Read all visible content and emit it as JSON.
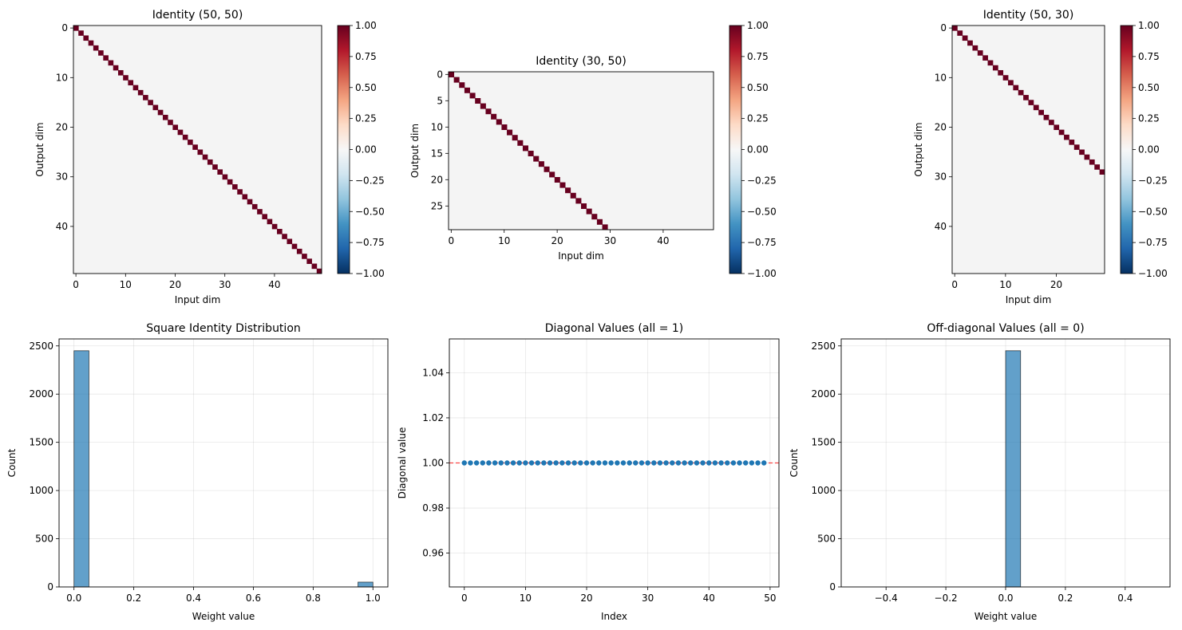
{
  "chart_data": [
    {
      "type": "heatmap",
      "title": "Identity (50, 50)",
      "xlabel": "Input dim",
      "ylabel": "Output dim",
      "rows": 50,
      "cols": 50,
      "matrix": "identity",
      "xticks": [
        0,
        10,
        20,
        30,
        40
      ],
      "yticks": [
        0,
        10,
        20,
        30,
        40
      ],
      "colorbar": {
        "range": [
          -1.0,
          1.0
        ],
        "ticks": [
          "1.00",
          "0.75",
          "0.50",
          "0.25",
          "0.00",
          "−0.25",
          "−0.50",
          "−0.75",
          "−1.00"
        ]
      },
      "colormap": "RdBu_r"
    },
    {
      "type": "heatmap",
      "title": "Identity (30, 50)",
      "xlabel": "Input dim",
      "ylabel": "Output dim",
      "rows": 30,
      "cols": 50,
      "matrix": "identity",
      "xticks": [
        0,
        10,
        20,
        30,
        40
      ],
      "yticks": [
        0,
        5,
        10,
        15,
        20,
        25
      ],
      "colorbar": {
        "range": [
          -1.0,
          1.0
        ],
        "ticks": [
          "1.00",
          "0.75",
          "0.50",
          "0.25",
          "0.00",
          "−0.25",
          "−0.50",
          "−0.75",
          "−1.00"
        ]
      },
      "colormap": "RdBu_r"
    },
    {
      "type": "heatmap",
      "title": "Identity (50, 30)",
      "xlabel": "Input dim",
      "ylabel": "Output dim",
      "rows": 50,
      "cols": 30,
      "matrix": "identity",
      "xticks": [
        0,
        10,
        20
      ],
      "yticks": [
        0,
        10,
        20,
        30,
        40
      ],
      "colorbar": {
        "range": [
          -1.0,
          1.0
        ],
        "ticks": [
          "1.00",
          "0.75",
          "0.50",
          "0.25",
          "0.00",
          "−0.25",
          "−0.50",
          "−0.75",
          "−1.00"
        ]
      },
      "colormap": "RdBu_r"
    },
    {
      "type": "bar",
      "subtype": "histogram",
      "title": "Square Identity Distribution",
      "xlabel": "Weight value",
      "ylabel": "Count",
      "bins": [
        {
          "x0": 0.0,
          "x1": 0.05,
          "count": 2450
        },
        {
          "x0": 0.95,
          "x1": 1.0,
          "count": 50
        }
      ],
      "xlim": [
        -0.05,
        1.05
      ],
      "ylim": [
        0,
        2572.5
      ],
      "xticks": [
        "0.0",
        "0.2",
        "0.4",
        "0.6",
        "0.8",
        "1.0"
      ],
      "yticks": [
        "0",
        "500",
        "1000",
        "1500",
        "2000",
        "2500"
      ],
      "color": "#1f77b4",
      "grid": true
    },
    {
      "type": "scatter",
      "title": "Diagonal Values (all = 1)",
      "xlabel": "Index",
      "ylabel": "Diagonal value",
      "x": [
        0,
        1,
        2,
        3,
        4,
        5,
        6,
        7,
        8,
        9,
        10,
        11,
        12,
        13,
        14,
        15,
        16,
        17,
        18,
        19,
        20,
        21,
        22,
        23,
        24,
        25,
        26,
        27,
        28,
        29,
        30,
        31,
        32,
        33,
        34,
        35,
        36,
        37,
        38,
        39,
        40,
        41,
        42,
        43,
        44,
        45,
        46,
        47,
        48,
        49
      ],
      "y": [
        1,
        1,
        1,
        1,
        1,
        1,
        1,
        1,
        1,
        1,
        1,
        1,
        1,
        1,
        1,
        1,
        1,
        1,
        1,
        1,
        1,
        1,
        1,
        1,
        1,
        1,
        1,
        1,
        1,
        1,
        1,
        1,
        1,
        1,
        1,
        1,
        1,
        1,
        1,
        1,
        1,
        1,
        1,
        1,
        1,
        1,
        1,
        1,
        1,
        1
      ],
      "reference_line": {
        "y": 1.0,
        "style": "dashed",
        "color": "#ff0000"
      },
      "xlim": [
        -2.45,
        51.45
      ],
      "ylim": [
        0.945,
        1.055
      ],
      "xticks": [
        "0",
        "10",
        "20",
        "30",
        "40",
        "50"
      ],
      "yticks": [
        "0.96",
        "0.98",
        "1.00",
        "1.02",
        "1.04"
      ],
      "color": "#1f77b4",
      "grid": true
    },
    {
      "type": "bar",
      "subtype": "histogram",
      "title": "Off-diagonal Values (all = 0)",
      "xlabel": "Weight value",
      "ylabel": "Count",
      "bins": [
        {
          "x0": 0.0,
          "x1": 0.05,
          "count": 2450
        }
      ],
      "xlim": [
        -0.55,
        0.55
      ],
      "ylim": [
        0,
        2572.5
      ],
      "xticks": [
        "−0.4",
        "−0.2",
        "0.0",
        "0.2",
        "0.4"
      ],
      "yticks": [
        "0",
        "500",
        "1000",
        "1500",
        "2000",
        "2500"
      ],
      "color": "#1f77b4",
      "grid": true
    }
  ]
}
